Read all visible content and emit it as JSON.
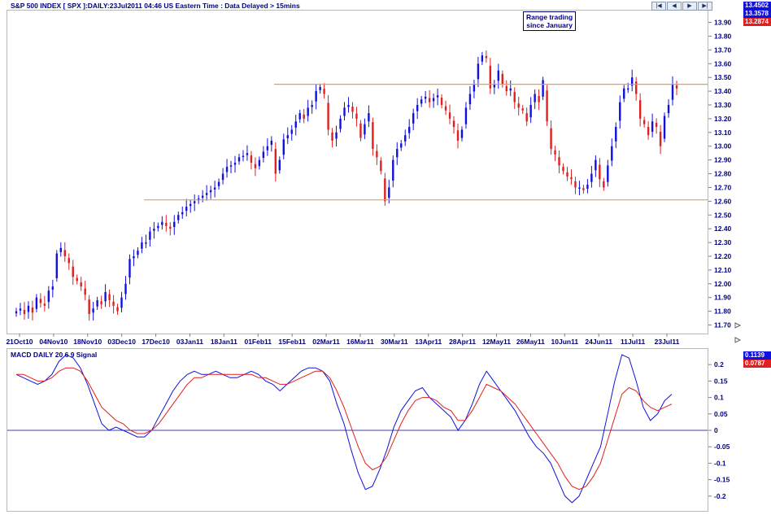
{
  "chart_data": [
    {
      "type": "candlestick",
      "title": "S&P 500 INDEX [ SPX ]:DAILY:23Jul2011 04:46 US Eastern Time  : Data Delayed > 15mins",
      "annotation": "Range trading since January",
      "annotation_lines": [
        "Range trading",
        "since January"
      ],
      "ylim": [
        11.65,
        13.98
      ],
      "y_ticks": [
        "13.90",
        "13.80",
        "13.70",
        "13.60",
        "13.50",
        "13.40",
        "13.30",
        "13.20",
        "13.10",
        "13.00",
        "12.90",
        "12.80",
        "12.70",
        "12.60",
        "12.50",
        "12.40",
        "12.30",
        "12.20",
        "12.10",
        "12.00",
        "11.90",
        "11.80",
        "11.70"
      ],
      "x_labels": [
        "21Oct10",
        "04Nov10",
        "18Nov10",
        "03Dec10",
        "17Dec10",
        "03Jan11",
        "18Jan11",
        "01Feb11",
        "15Feb11",
        "02Mar11",
        "16Mar11",
        "30Mar11",
        "13Apr11",
        "28Apr11",
        "12May11",
        "26May11",
        "10Jun11",
        "24Jun11",
        "11Jul11",
        "23Jul11"
      ],
      "price_badges": [
        {
          "value": "13.4502",
          "color": "#1010e0"
        },
        {
          "value": "13.3578",
          "color": "#1010e0"
        },
        {
          "value": "13.2874",
          "color": "#e02020"
        }
      ],
      "horizontal_lines": [
        13.45,
        12.61
      ],
      "closes": [
        11.8,
        11.82,
        11.78,
        11.84,
        11.79,
        11.9,
        11.86,
        11.84,
        11.95,
        11.98,
        12.22,
        12.26,
        12.2,
        12.15,
        12.05,
        12.02,
        11.98,
        11.92,
        11.78,
        11.82,
        11.88,
        11.85,
        11.94,
        11.88,
        11.84,
        11.8,
        11.9,
        12.0,
        12.18,
        12.2,
        12.24,
        12.3,
        12.3,
        12.38,
        12.4,
        12.42,
        12.45,
        12.42,
        12.4,
        12.45,
        12.5,
        12.52,
        12.56,
        12.58,
        12.6,
        12.62,
        12.64,
        12.66,
        12.68,
        12.7,
        12.74,
        12.8,
        12.85,
        12.86,
        12.88,
        12.92,
        12.93,
        12.95,
        12.88,
        12.84,
        12.9,
        12.96,
        13.0,
        13.04,
        12.8,
        12.9,
        13.05,
        13.08,
        13.12,
        13.18,
        13.24,
        13.2,
        13.28,
        13.3,
        13.4,
        13.43,
        13.38,
        13.12,
        13.04,
        13.1,
        13.2,
        13.28,
        13.3,
        13.25,
        13.2,
        13.06,
        13.16,
        13.24,
        12.98,
        12.92,
        12.82,
        12.6,
        12.7,
        12.9,
        12.98,
        13.02,
        13.08,
        13.14,
        13.24,
        13.3,
        13.34,
        13.36,
        13.32,
        13.35,
        13.37,
        13.3,
        13.26,
        13.2,
        13.14,
        13.04,
        13.12,
        13.28,
        13.38,
        13.45,
        13.6,
        13.66,
        13.64,
        13.42,
        13.45,
        13.55,
        13.45,
        13.4,
        13.42,
        13.32,
        13.28,
        13.26,
        13.18,
        13.3,
        13.38,
        13.32,
        13.48,
        13.18,
        12.98,
        12.94,
        12.86,
        12.82,
        12.78,
        12.76,
        12.7,
        12.7,
        12.68,
        12.72,
        12.8,
        12.9,
        12.76,
        12.7,
        12.86,
        13.0,
        13.14,
        13.32,
        13.42,
        13.42,
        13.5,
        13.38,
        13.2,
        13.16,
        13.08,
        13.18,
        13.14,
        13.0,
        13.22,
        13.3,
        13.45,
        13.42
      ]
    },
    {
      "type": "line",
      "title": "MACD DAILY 20 6 9 Signal",
      "ylim": [
        -0.245,
        0.245
      ],
      "y_ticks": [
        "0.2",
        "0.15",
        "0.1",
        "0.05",
        "0",
        "-0.05",
        "-0.1",
        "-0.15",
        "-0.2"
      ],
      "price_badges": [
        {
          "value": "0.1139",
          "color": "#1010e0"
        },
        {
          "value": "0.0787",
          "color": "#e02020"
        }
      ],
      "series": [
        {
          "color": "#1010e0",
          "values": [
            0.17,
            0.16,
            0.15,
            0.14,
            0.15,
            0.17,
            0.21,
            0.23,
            0.22,
            0.19,
            0.14,
            0.08,
            0.02,
            0.0,
            0.01,
            0.0,
            -0.01,
            -0.02,
            -0.02,
            0.0,
            0.04,
            0.08,
            0.12,
            0.15,
            0.17,
            0.18,
            0.17,
            0.17,
            0.18,
            0.17,
            0.16,
            0.16,
            0.17,
            0.18,
            0.17,
            0.15,
            0.14,
            0.12,
            0.14,
            0.16,
            0.18,
            0.19,
            0.19,
            0.18,
            0.15,
            0.08,
            0.02,
            -0.06,
            -0.13,
            -0.18,
            -0.17,
            -0.12,
            -0.06,
            0.01,
            0.06,
            0.09,
            0.12,
            0.13,
            0.1,
            0.08,
            0.06,
            0.04,
            0.0,
            0.03,
            0.08,
            0.14,
            0.18,
            0.15,
            0.12,
            0.09,
            0.06,
            0.02,
            -0.02,
            -0.05,
            -0.07,
            -0.1,
            -0.15,
            -0.2,
            -0.22,
            -0.2,
            -0.15,
            -0.1,
            -0.05,
            0.05,
            0.15,
            0.23,
            0.22,
            0.15,
            0.07,
            0.03,
            0.05,
            0.09,
            0.11
          ]
        },
        {
          "color": "#e02020",
          "values": [
            0.17,
            0.17,
            0.16,
            0.15,
            0.15,
            0.16,
            0.18,
            0.19,
            0.19,
            0.18,
            0.15,
            0.11,
            0.07,
            0.05,
            0.03,
            0.02,
            0.0,
            -0.01,
            -0.01,
            0.0,
            0.02,
            0.05,
            0.08,
            0.11,
            0.14,
            0.16,
            0.16,
            0.17,
            0.17,
            0.17,
            0.17,
            0.17,
            0.17,
            0.17,
            0.16,
            0.16,
            0.15,
            0.14,
            0.14,
            0.15,
            0.16,
            0.17,
            0.18,
            0.18,
            0.16,
            0.12,
            0.07,
            0.01,
            -0.05,
            -0.1,
            -0.12,
            -0.11,
            -0.08,
            -0.03,
            0.02,
            0.06,
            0.09,
            0.1,
            0.1,
            0.09,
            0.07,
            0.06,
            0.03,
            0.03,
            0.06,
            0.1,
            0.14,
            0.13,
            0.12,
            0.1,
            0.08,
            0.05,
            0.02,
            -0.01,
            -0.04,
            -0.07,
            -0.1,
            -0.14,
            -0.17,
            -0.18,
            -0.17,
            -0.14,
            -0.1,
            -0.03,
            0.04,
            0.11,
            0.13,
            0.12,
            0.09,
            0.07,
            0.06,
            0.07,
            0.08
          ]
        }
      ]
    }
  ]
}
